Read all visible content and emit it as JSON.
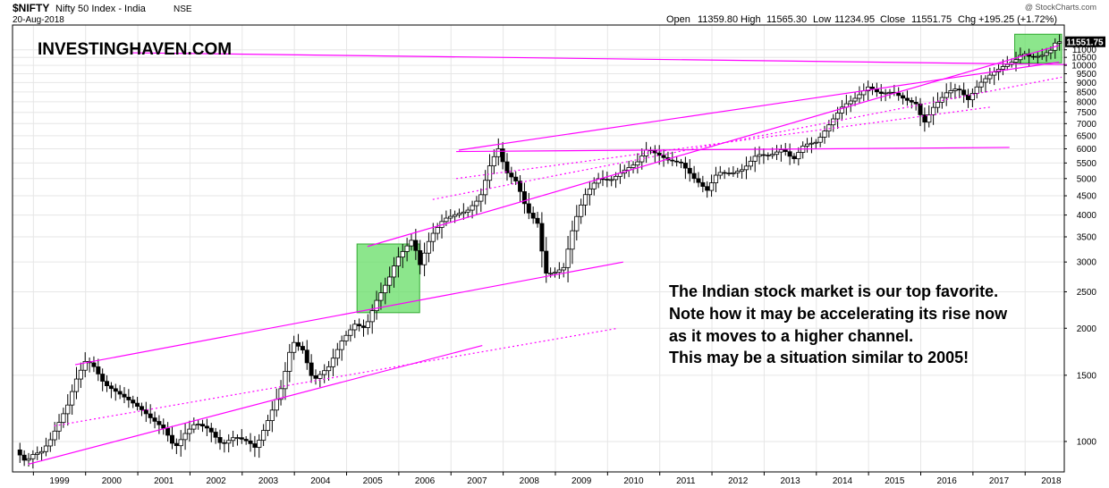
{
  "header": {
    "symbol": "$NIFTY",
    "name": "Nifty 50 Index - India",
    "exchange": "NSE",
    "date": "20-Aug-2018",
    "copyright": "@ StockCharts.com",
    "ohlc": {
      "open_label": "Open",
      "open": "11359.80",
      "high_label": "High",
      "high": "11565.30",
      "low_label": "Low",
      "low": "11234.95",
      "close_label": "Close",
      "close": "11551.75",
      "chg_label": "Chg",
      "chg": "+195.25 (+1.72%)"
    }
  },
  "watermark": "INVESTINGHAVEN.COM",
  "annotation": [
    "The Indian stock market is our top favorite.",
    "Note how it may be accelerating its rise now",
    "as it moves to a higher channel.",
    "This may be a situation similar to 2005!"
  ],
  "colors": {
    "channel": "#ff00ff",
    "highlight_fill": "#66dd66",
    "highlight_stroke": "#33aa33",
    "candle_up": "#ffffff",
    "candle_down": "#000000",
    "grid": "#e6e6e6",
    "price_tag": "#000000"
  },
  "chart_data": {
    "type": "candlestick",
    "y_scale": "log",
    "ylim": [
      830,
      12800
    ],
    "xlim": [
      1998.6,
      2018.75
    ],
    "grid": true,
    "x_ticks": [
      1999,
      2000,
      2001,
      2002,
      2003,
      2004,
      2005,
      2006,
      2007,
      2008,
      2009,
      2010,
      2011,
      2012,
      2013,
      2014,
      2015,
      2016,
      2017,
      2018
    ],
    "y_ticks": [
      1000,
      1500,
      2000,
      2500,
      3000,
      3500,
      4000,
      4500,
      5000,
      5500,
      6000,
      6500,
      7000,
      7500,
      8000,
      8500,
      9000,
      9500,
      10000,
      10500,
      11000
    ],
    "last_price": "11551.75",
    "price_path": [
      [
        1998.7,
        950
      ],
      [
        1998.9,
        880
      ],
      [
        1999.0,
        920
      ],
      [
        1999.2,
        940
      ],
      [
        1999.35,
        1000
      ],
      [
        1999.5,
        1100
      ],
      [
        1999.7,
        1250
      ],
      [
        1999.85,
        1450
      ],
      [
        2000.05,
        1650
      ],
      [
        2000.2,
        1580
      ],
      [
        2000.4,
        1420
      ],
      [
        2000.65,
        1350
      ],
      [
        2000.9,
        1280
      ],
      [
        2001.1,
        1220
      ],
      [
        2001.3,
        1150
      ],
      [
        2001.55,
        1080
      ],
      [
        2001.75,
        960
      ],
      [
        2001.95,
        1050
      ],
      [
        2002.15,
        1120
      ],
      [
        2002.4,
        1080
      ],
      [
        2002.65,
        980
      ],
      [
        2002.9,
        1030
      ],
      [
        2003.15,
        1000
      ],
      [
        2003.3,
        960
      ],
      [
        2003.55,
        1150
      ],
      [
        2003.8,
        1400
      ],
      [
        2004.0,
        1850
      ],
      [
        2004.2,
        1750
      ],
      [
        2004.4,
        1450
      ],
      [
        2004.7,
        1580
      ],
      [
        2004.95,
        1850
      ],
      [
        2005.2,
        2050
      ],
      [
        2005.4,
        2000
      ],
      [
        2005.6,
        2350
      ],
      [
        2005.85,
        2700
      ],
      [
        2006.0,
        3050
      ],
      [
        2006.3,
        3450
      ],
      [
        2006.45,
        2950
      ],
      [
        2006.65,
        3500
      ],
      [
        2006.9,
        3900
      ],
      [
        2007.1,
        4000
      ],
      [
        2007.35,
        4100
      ],
      [
        2007.6,
        4450
      ],
      [
        2007.8,
        5500
      ],
      [
        2007.95,
        6000
      ],
      [
        2008.1,
        5200
      ],
      [
        2008.3,
        4900
      ],
      [
        2008.5,
        4100
      ],
      [
        2008.7,
        3800
      ],
      [
        2008.85,
        2800
      ],
      [
        2009.0,
        2800
      ],
      [
        2009.2,
        2900
      ],
      [
        2009.4,
        3800
      ],
      [
        2009.6,
        4500
      ],
      [
        2009.85,
        5000
      ],
      [
        2010.1,
        4950
      ],
      [
        2010.35,
        5250
      ],
      [
        2010.6,
        5500
      ],
      [
        2010.8,
        6000
      ],
      [
        2011.0,
        5800
      ],
      [
        2011.2,
        5600
      ],
      [
        2011.45,
        5500
      ],
      [
        2011.7,
        5000
      ],
      [
        2011.95,
        4650
      ],
      [
        2012.15,
        5200
      ],
      [
        2012.4,
        5150
      ],
      [
        2012.65,
        5300
      ],
      [
        2012.9,
        5800
      ],
      [
        2013.15,
        5750
      ],
      [
        2013.4,
        6000
      ],
      [
        2013.6,
        5600
      ],
      [
        2013.8,
        6150
      ],
      [
        2014.05,
        6250
      ],
      [
        2014.3,
        7000
      ],
      [
        2014.55,
        7800
      ],
      [
        2014.8,
        8200
      ],
      [
        2015.05,
        8800
      ],
      [
        2015.25,
        8400
      ],
      [
        2015.5,
        8500
      ],
      [
        2015.75,
        8100
      ],
      [
        2015.95,
        7900
      ],
      [
        2016.1,
        7000
      ],
      [
        2016.3,
        7800
      ],
      [
        2016.55,
        8500
      ],
      [
        2016.75,
        8700
      ],
      [
        2016.95,
        8100
      ],
      [
        2017.15,
        8900
      ],
      [
        2017.4,
        9500
      ],
      [
        2017.6,
        9900
      ],
      [
        2017.85,
        10300
      ],
      [
        2018.0,
        10800
      ],
      [
        2018.15,
        10500
      ],
      [
        2018.35,
        10600
      ],
      [
        2018.55,
        11000
      ],
      [
        2018.63,
        11551.75
      ]
    ],
    "channel_lines": [
      {
        "style": "solid",
        "from": [
          2000.9,
          10800
        ],
        "to": [
          2018.8,
          10050
        ]
      },
      {
        "style": "solid",
        "from": [
          1998.9,
          870
        ],
        "to": [
          2007.6,
          1800
        ]
      },
      {
        "style": "solid",
        "from": [
          1999.8,
          1600
        ],
        "to": [
          2010.3,
          3000
        ]
      },
      {
        "style": "dotted",
        "from": [
          1999.4,
          1100
        ],
        "to": [
          2010.2,
          2000
        ]
      },
      {
        "style": "solid",
        "from": [
          2005.4,
          3300
        ],
        "to": [
          2018.65,
          11300
        ]
      },
      {
        "style": "solid",
        "from": [
          2007.1,
          5900
        ],
        "to": [
          2017.7,
          6050
        ]
      },
      {
        "style": "dotted",
        "from": [
          2006.65,
          4400
        ],
        "to": [
          2018.7,
          9300
        ]
      },
      {
        "style": "dotted",
        "from": [
          2007.1,
          5000
        ],
        "to": [
          2017.35,
          7750
        ]
      },
      {
        "style": "solid",
        "from": [
          2007.15,
          5950
        ],
        "to": [
          2018.65,
          10200
        ]
      }
    ],
    "highlight_boxes": [
      {
        "x0": 2005.2,
        "x1": 2006.4,
        "y0": 2200,
        "y1": 3350
      },
      {
        "x0": 2017.8,
        "x1": 2018.7,
        "y0": 10150,
        "y1": 12100
      }
    ]
  }
}
